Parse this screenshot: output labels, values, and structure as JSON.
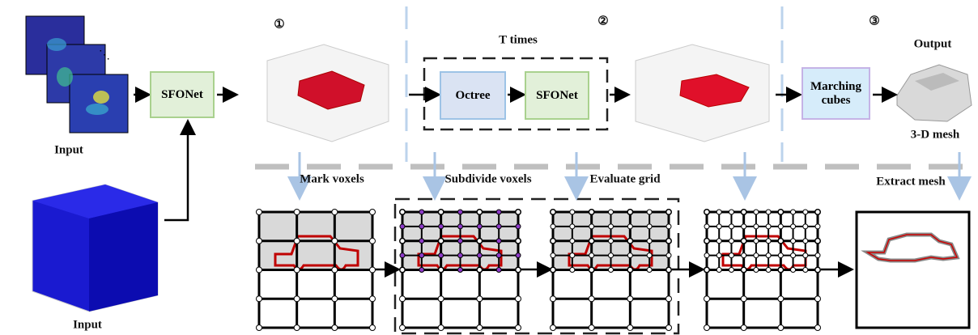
{
  "steps": [
    "①",
    "②",
    "③"
  ],
  "loop": {
    "label": "T times"
  },
  "inputs": [
    "Input",
    "Input"
  ],
  "nodes": [
    {
      "label": "SFONet"
    },
    {
      "label": "Octree"
    },
    {
      "label": "SFONet"
    },
    {
      "label": "Marching cubes"
    }
  ],
  "output": {
    "title": "Output",
    "caption": "3-D mesh"
  },
  "stages": [
    "Mark voxels",
    "Subdivide voxels",
    "Evaluate grid",
    "Extract mesh"
  ]
}
